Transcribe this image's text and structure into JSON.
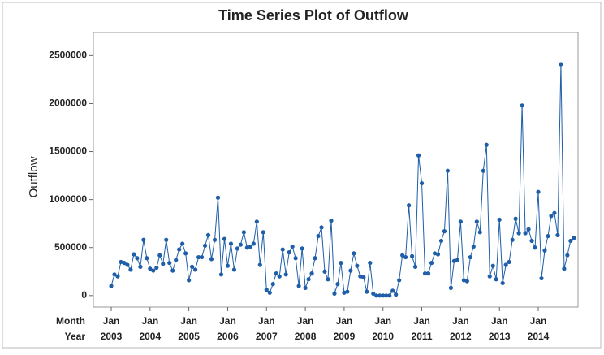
{
  "chart_data": {
    "type": "line",
    "title": "Time Series Plot of Outflow",
    "y_label": "Outflow",
    "x": [
      "2003-01",
      "2003-02",
      "2003-03",
      "2003-04",
      "2003-05",
      "2003-06",
      "2003-07",
      "2003-08",
      "2003-09",
      "2003-10",
      "2003-11",
      "2003-12",
      "2004-01",
      "2004-02",
      "2004-03",
      "2004-04",
      "2004-05",
      "2004-06",
      "2004-07",
      "2004-08",
      "2004-09",
      "2004-10",
      "2004-11",
      "2004-12",
      "2005-01",
      "2005-02",
      "2005-03",
      "2005-04",
      "2005-05",
      "2005-06",
      "2005-07",
      "2005-08",
      "2005-09",
      "2005-10",
      "2005-11",
      "2005-12",
      "2006-01",
      "2006-02",
      "2006-03",
      "2006-04",
      "2006-05",
      "2006-06",
      "2006-07",
      "2006-08",
      "2006-09",
      "2006-10",
      "2006-11",
      "2006-12",
      "2007-01",
      "2007-02",
      "2007-03",
      "2007-04",
      "2007-05",
      "2007-06",
      "2007-07",
      "2007-08",
      "2007-09",
      "2007-10",
      "2007-11",
      "2007-12",
      "2008-01",
      "2008-02",
      "2008-03",
      "2008-04",
      "2008-05",
      "2008-06",
      "2008-07",
      "2008-08",
      "2008-09",
      "2008-10",
      "2008-11",
      "2008-12",
      "2009-01",
      "2009-02",
      "2009-03",
      "2009-04",
      "2009-05",
      "2009-06",
      "2009-07",
      "2009-08",
      "2009-09",
      "2009-10",
      "2009-11",
      "2009-12",
      "2010-01",
      "2010-02",
      "2010-03",
      "2010-04",
      "2010-05",
      "2010-06",
      "2010-07",
      "2010-08",
      "2010-09",
      "2010-10",
      "2010-11",
      "2010-12",
      "2011-01",
      "2011-02",
      "2011-03",
      "2011-04",
      "2011-05",
      "2011-06",
      "2011-07",
      "2011-08",
      "2011-09",
      "2011-10",
      "2011-11",
      "2011-12",
      "2012-01",
      "2012-02",
      "2012-03",
      "2012-04",
      "2012-05",
      "2012-06",
      "2012-07",
      "2012-08",
      "2012-09",
      "2012-10",
      "2012-11",
      "2012-12",
      "2013-01",
      "2013-02",
      "2013-03",
      "2013-04",
      "2013-05",
      "2013-06",
      "2013-07",
      "2013-08",
      "2013-09",
      "2013-10",
      "2013-11",
      "2013-12",
      "2014-01",
      "2014-02",
      "2014-03",
      "2014-04",
      "2014-05",
      "2014-06",
      "2014-07",
      "2014-08",
      "2014-09",
      "2014-10",
      "2014-11",
      "2014-12"
    ],
    "series": [
      {
        "name": "Outflow",
        "color": "#1f5ea8",
        "values": [
          100000,
          220000,
          200000,
          350000,
          340000,
          320000,
          270000,
          430000,
          390000,
          300000,
          580000,
          390000,
          280000,
          260000,
          290000,
          420000,
          330000,
          580000,
          340000,
          260000,
          370000,
          480000,
          540000,
          440000,
          160000,
          300000,
          270000,
          400000,
          400000,
          520000,
          630000,
          380000,
          580000,
          1020000,
          220000,
          590000,
          310000,
          540000,
          270000,
          490000,
          530000,
          660000,
          500000,
          510000,
          540000,
          770000,
          320000,
          660000,
          60000,
          30000,
          120000,
          230000,
          200000,
          480000,
          220000,
          450000,
          510000,
          390000,
          100000,
          490000,
          80000,
          170000,
          230000,
          390000,
          620000,
          710000,
          250000,
          170000,
          780000,
          20000,
          120000,
          340000,
          30000,
          40000,
          260000,
          440000,
          310000,
          200000,
          190000,
          40000,
          340000,
          20000,
          0,
          0,
          0,
          0,
          0,
          50000,
          10000,
          160000,
          420000,
          400000,
          940000,
          410000,
          300000,
          1460000,
          1170000,
          230000,
          230000,
          340000,
          440000,
          430000,
          570000,
          670000,
          1300000,
          80000,
          360000,
          370000,
          770000,
          160000,
          150000,
          400000,
          510000,
          770000,
          660000,
          1300000,
          1570000,
          200000,
          310000,
          170000,
          790000,
          130000,
          320000,
          350000,
          580000,
          800000,
          650000,
          1980000,
          650000,
          690000,
          570000,
          500000,
          1080000,
          180000,
          470000,
          620000,
          830000,
          860000,
          630000,
          2410000,
          280000,
          420000,
          570000,
          600000
        ]
      }
    ],
    "ylim": [
      -120000,
      2740000
    ],
    "yticks": [
      0,
      500000,
      1000000,
      1500000,
      2000000,
      2500000
    ],
    "xticks": [
      "2003-01",
      "2004-01",
      "2005-01",
      "2006-01",
      "2007-01",
      "2008-01",
      "2009-01",
      "2010-01",
      "2011-01",
      "2012-01",
      "2013-01",
      "2014-01"
    ],
    "x_tick_rows": [
      {
        "label": "Month",
        "ticks": [
          "Jan",
          "Jan",
          "Jan",
          "Jan",
          "Jan",
          "Jan",
          "Jan",
          "Jan",
          "Jan",
          "Jan",
          "Jan",
          "Jan"
        ]
      },
      {
        "label": "Year",
        "ticks": [
          "2003",
          "2004",
          "2005",
          "2006",
          "2007",
          "2008",
          "2009",
          "2010",
          "2011",
          "2012",
          "2013",
          "2014"
        ]
      }
    ],
    "grid": false
  }
}
